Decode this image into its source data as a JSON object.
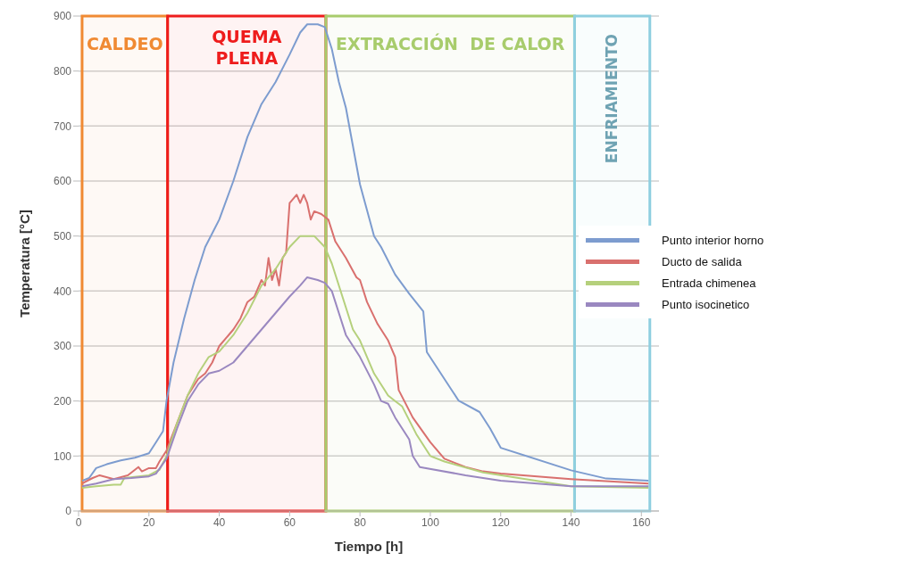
{
  "chart_data": {
    "type": "line",
    "xlabel": "Tiempo [h]",
    "ylabel": "Temperatura [°C]",
    "xlim": [
      0,
      165
    ],
    "xticks": [
      0,
      20,
      40,
      60,
      80,
      100,
      120,
      140,
      160
    ],
    "ylim": [
      0,
      900
    ],
    "yticks": [
      0,
      100,
      200,
      300,
      400,
      500,
      600,
      700,
      800,
      900
    ],
    "grid": "y",
    "legend": "right",
    "marker": "none",
    "line_style": "solid",
    "bands": [
      {
        "axis": "x",
        "from": 1,
        "to": 25.3,
        "label": "CALDEO",
        "color": "#f08a33"
      },
      {
        "axis": "x",
        "from": 25.3,
        "to": 70.3,
        "label": "QUEMA PLENA",
        "color": "#ee1c1c"
      },
      {
        "axis": "x",
        "from": 70.3,
        "to": 141,
        "label": "EXTRACCIÓN  DE CALOR",
        "color": "#a8cc6c"
      },
      {
        "axis": "x",
        "from": 141,
        "to": 162.4,
        "label": "ENFRIAMIENTO",
        "color": "#8fcfe0"
      }
    ],
    "series": [
      {
        "name": "Punto interior horno",
        "color": "#7d9ccf",
        "x": [
          1,
          3,
          5,
          8,
          12,
          16,
          20,
          22,
          24,
          25,
          27,
          30,
          33,
          36,
          40,
          44,
          48,
          52,
          56,
          60,
          63,
          65,
          68,
          70,
          72,
          74,
          76,
          80,
          84,
          86,
          90,
          94,
          98,
          99,
          108,
          114,
          117,
          120,
          140,
          150,
          162
        ],
        "values": [
          55,
          60,
          78,
          85,
          92,
          97,
          105,
          125,
          145,
          200,
          270,
          350,
          420,
          480,
          530,
          600,
          680,
          740,
          780,
          830,
          870,
          885,
          885,
          880,
          840,
          780,
          733,
          594,
          500,
          480,
          430,
          395,
          363,
          289,
          201,
          180,
          150,
          115,
          74,
          59,
          55
        ]
      },
      {
        "name": "Ducto de salida",
        "color": "#d9706e",
        "x": [
          1,
          4,
          6,
          10,
          14,
          17,
          18,
          20,
          22,
          23,
          25,
          28,
          31,
          34,
          36,
          38,
          40,
          44,
          46,
          48,
          50,
          52,
          53,
          54,
          55,
          56,
          57,
          58,
          59,
          60,
          62,
          63,
          64,
          65,
          66,
          67,
          69,
          71,
          73,
          76,
          79,
          80,
          82,
          85,
          88,
          90,
          91,
          95,
          100,
          104,
          110,
          115,
          120,
          140,
          162
        ],
        "values": [
          50,
          60,
          65,
          58,
          65,
          80,
          72,
          78,
          78,
          90,
          110,
          160,
          210,
          240,
          250,
          270,
          300,
          330,
          350,
          380,
          390,
          420,
          410,
          460,
          420,
          440,
          410,
          460,
          470,
          560,
          575,
          560,
          575,
          560,
          530,
          545,
          540,
          530,
          490,
          460,
          425,
          420,
          380,
          340,
          310,
          280,
          220,
          170,
          125,
          95,
          80,
          72,
          68,
          58,
          50
        ]
      },
      {
        "name": "Entrada chimenea",
        "color": "#b5d07c",
        "x": [
          1,
          5,
          10,
          12,
          13,
          20,
          23,
          25,
          28,
          31,
          34,
          37,
          40,
          44,
          48,
          52,
          56,
          60,
          63,
          67,
          70,
          72,
          75,
          78,
          80,
          84,
          88,
          90,
          92,
          96,
          100,
          104,
          115,
          140,
          162
        ],
        "values": [
          42,
          45,
          48,
          48,
          60,
          65,
          75,
          100,
          160,
          210,
          250,
          280,
          290,
          320,
          360,
          410,
          440,
          480,
          500,
          500,
          480,
          450,
          390,
          330,
          310,
          250,
          210,
          200,
          190,
          140,
          100,
          90,
          70,
          45,
          42
        ]
      },
      {
        "name": "Punto isocinetico",
        "color": "#9a88c0",
        "x": [
          1,
          5,
          10,
          15,
          20,
          22,
          25,
          28,
          31,
          34,
          37,
          40,
          44,
          48,
          52,
          56,
          60,
          63,
          65,
          68,
          70,
          72,
          74,
          76,
          80,
          84,
          86,
          88,
          90,
          94,
          95,
          97,
          110,
          120,
          140,
          162
        ],
        "values": [
          45,
          50,
          58,
          60,
          63,
          68,
          95,
          150,
          200,
          230,
          250,
          255,
          270,
          300,
          330,
          360,
          390,
          410,
          425,
          420,
          415,
          400,
          360,
          320,
          280,
          230,
          200,
          195,
          170,
          130,
          100,
          80,
          65,
          55,
          45,
          45
        ]
      }
    ]
  }
}
